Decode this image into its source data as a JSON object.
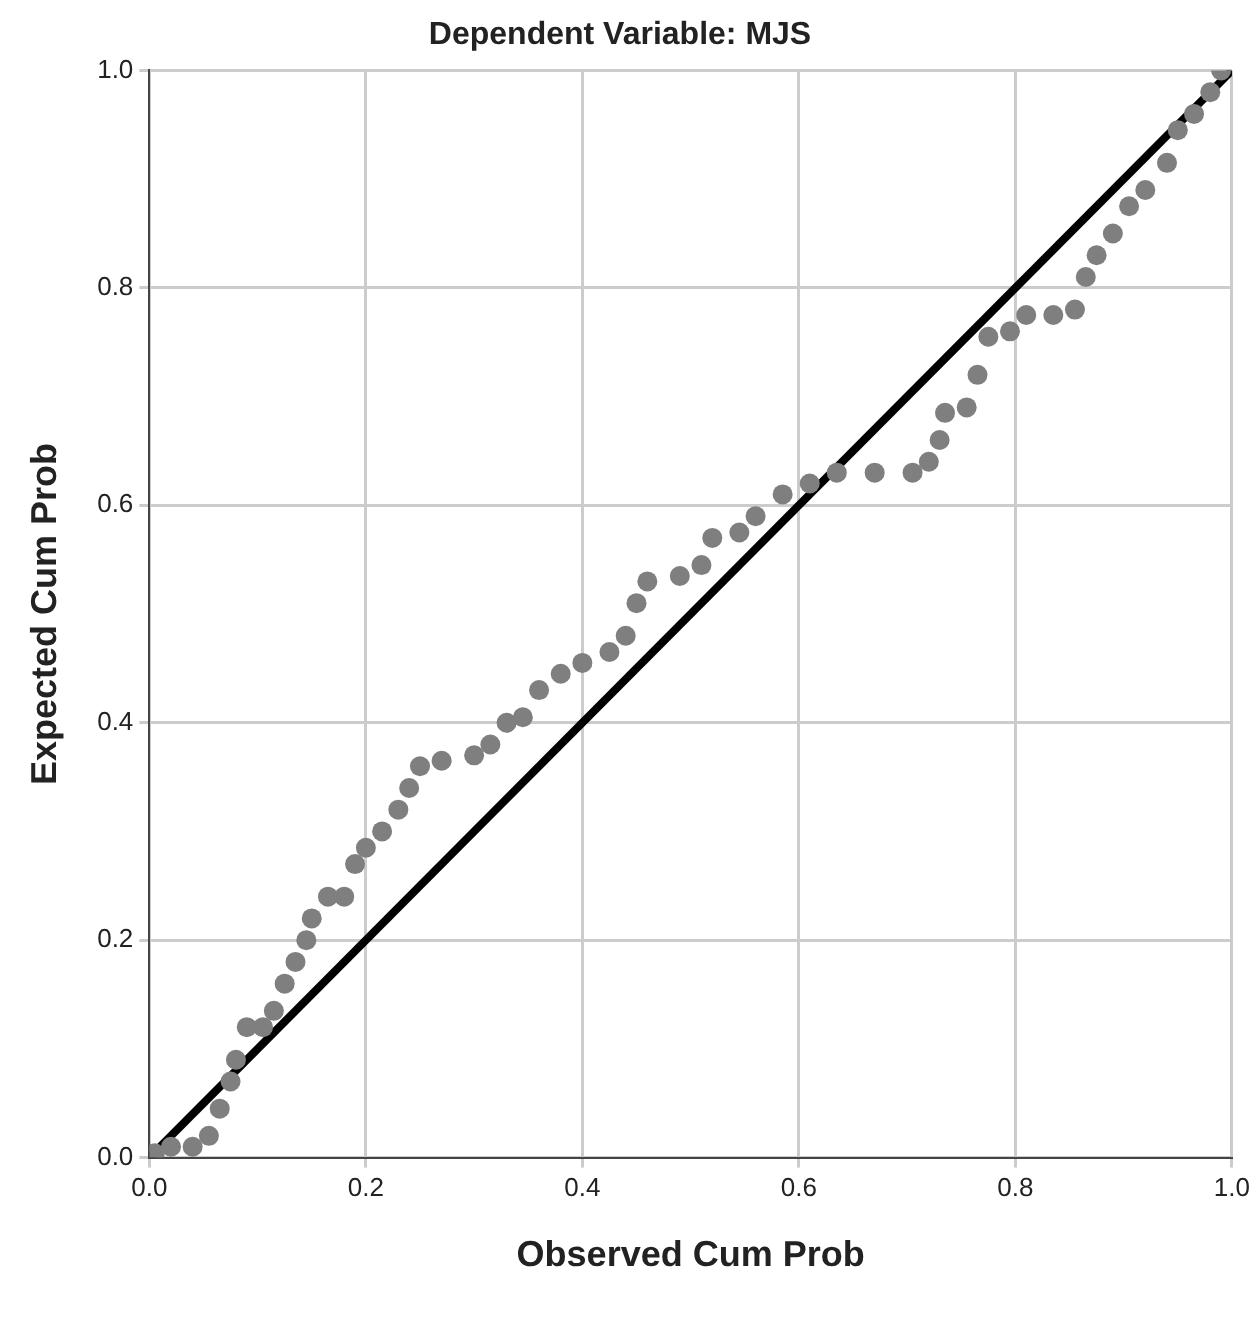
{
  "chart_data": {
    "type": "scatter",
    "title": "Dependent Variable: MJS",
    "xlabel": "Observed Cum Prob",
    "ylabel": "Expected Cum Prob",
    "xlim": [
      0,
      1
    ],
    "ylim": [
      0,
      1
    ],
    "xticks": [
      {
        "value": 0,
        "label": "0.0"
      },
      {
        "value": 0.2,
        "label": "0.2"
      },
      {
        "value": 0.4,
        "label": "0.4"
      },
      {
        "value": 0.6,
        "label": "0.6"
      },
      {
        "value": 0.8,
        "label": "0.8"
      },
      {
        "value": 1,
        "label": "1.0"
      }
    ],
    "yticks": [
      {
        "value": 0,
        "label": "0.0"
      },
      {
        "value": 0.2,
        "label": "0.2"
      },
      {
        "value": 0.4,
        "label": "0.4"
      },
      {
        "value": 0.6,
        "label": "0.6"
      },
      {
        "value": 0.8,
        "label": "0.8"
      },
      {
        "value": 1,
        "label": "1.0"
      }
    ],
    "grid": true,
    "legend": false,
    "marker": "circle",
    "series": [
      {
        "color": "#7f7f7f",
        "x": [
          0.005,
          0.02,
          0.04,
          0.055,
          0.065,
          0.075,
          0.08,
          0.09,
          0.105,
          0.115,
          0.125,
          0.135,
          0.145,
          0.15,
          0.165,
          0.18,
          0.19,
          0.2,
          0.215,
          0.23,
          0.24,
          0.25,
          0.27,
          0.3,
          0.315,
          0.33,
          0.345,
          0.36,
          0.38,
          0.4,
          0.425,
          0.44,
          0.45,
          0.46,
          0.49,
          0.51,
          0.52,
          0.545,
          0.56,
          0.585,
          0.61,
          0.635,
          0.67,
          0.705,
          0.72,
          0.73,
          0.735,
          0.755,
          0.765,
          0.775,
          0.795,
          0.81,
          0.835,
          0.855,
          0.865,
          0.875,
          0.89,
          0.905,
          0.92,
          0.94,
          0.95,
          0.965,
          0.98,
          0.99
        ],
        "values": [
          0.004,
          0.01,
          0.01,
          0.02,
          0.045,
          0.07,
          0.09,
          0.12,
          0.12,
          0.135,
          0.16,
          0.18,
          0.2,
          0.22,
          0.24,
          0.24,
          0.27,
          0.285,
          0.3,
          0.32,
          0.34,
          0.36,
          0.365,
          0.37,
          0.38,
          0.4,
          0.405,
          0.43,
          0.445,
          0.455,
          0.465,
          0.48,
          0.51,
          0.53,
          0.535,
          0.545,
          0.57,
          0.575,
          0.59,
          0.61,
          0.62,
          0.63,
          0.63,
          0.63,
          0.64,
          0.66,
          0.685,
          0.69,
          0.72,
          0.755,
          0.76,
          0.775,
          0.775,
          0.78,
          0.81,
          0.83,
          0.85,
          0.875,
          0.89,
          0.915,
          0.945,
          0.96,
          0.98,
          1.0
        ]
      },
      {
        "type": "line",
        "color": "#000000",
        "x": [
          0,
          1
        ],
        "values": [
          0,
          1
        ],
        "marker": "none",
        "line_style": "solid"
      }
    ]
  }
}
